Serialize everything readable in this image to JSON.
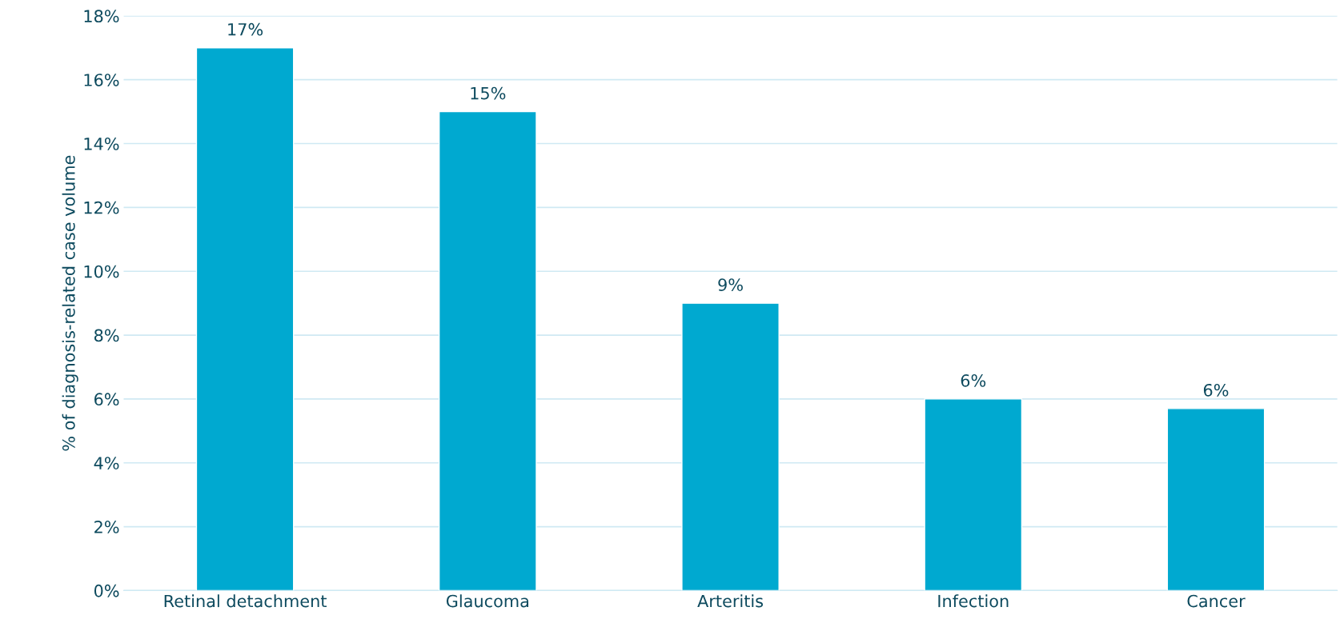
{
  "chart_data": {
    "type": "bar",
    "ylabel": "% of diagnosis-related case volume",
    "categories": [
      "Retinal detachment",
      "Glaucoma",
      "Arteritis",
      "Infection",
      "Cancer"
    ],
    "values": [
      17,
      15,
      9,
      6,
      5.7
    ],
    "value_labels": [
      "17%",
      "15%",
      "9%",
      "6%",
      "6%"
    ],
    "color": "#00a9d0",
    "ylim": [
      0,
      18
    ],
    "yticks": [
      {
        "value": 0,
        "label": "0%"
      },
      {
        "value": 2,
        "label": "2%"
      },
      {
        "value": 4,
        "label": "4%"
      },
      {
        "value": 6,
        "label": "6%"
      },
      {
        "value": 8,
        "label": "8%"
      },
      {
        "value": 10,
        "label": "10%"
      },
      {
        "value": 12,
        "label": "12%"
      },
      {
        "value": 14,
        "label": "14%"
      },
      {
        "value": 16,
        "label": "16%"
      },
      {
        "value": 18,
        "label": "18%"
      }
    ],
    "grid": "y",
    "legend": false
  }
}
